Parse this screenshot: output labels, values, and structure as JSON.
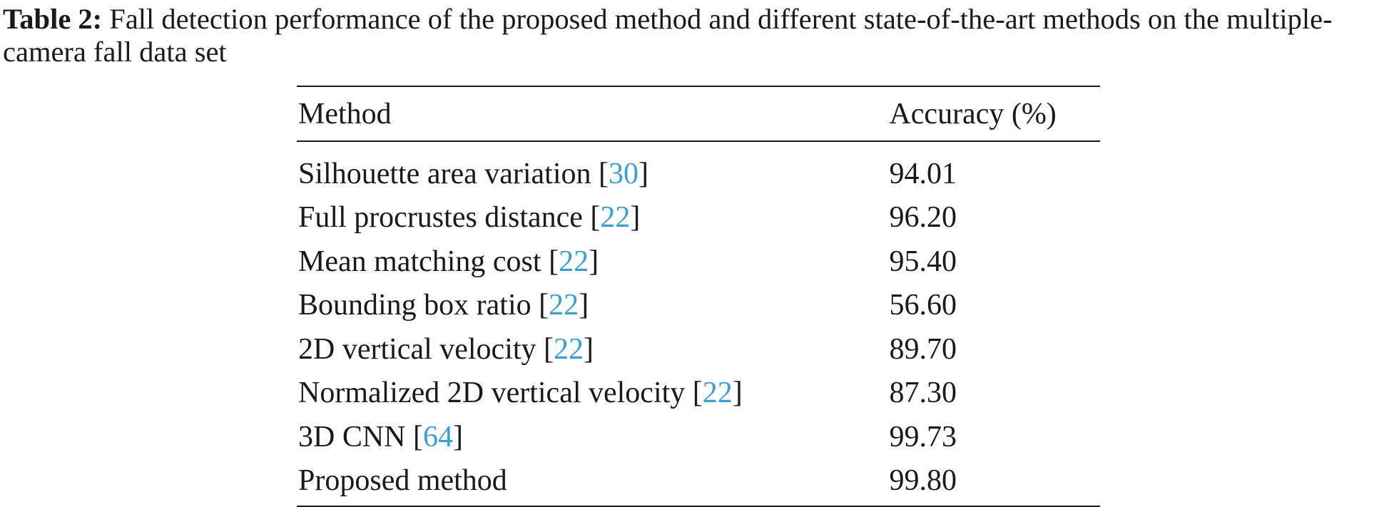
{
  "caption": {
    "label": "Table 2:",
    "text": "Fall detection performance of the proposed method and different state-of-the-art methods on the multiple-camera fall data set"
  },
  "table": {
    "headers": {
      "method": "Method",
      "accuracy": "Accuracy (%)"
    },
    "rows": [
      {
        "method": "Silhouette area variation",
        "ref": "30",
        "accuracy": "94.01"
      },
      {
        "method": "Full procrustes distance",
        "ref": "22",
        "accuracy": "96.20"
      },
      {
        "method": "Mean matching cost",
        "ref": "22",
        "accuracy": "95.40"
      },
      {
        "method": "Bounding box ratio",
        "ref": "22",
        "accuracy": "56.60"
      },
      {
        "method": "2D vertical velocity",
        "ref": "22",
        "accuracy": "89.70"
      },
      {
        "method": "Normalized 2D vertical velocity",
        "ref": "22",
        "accuracy": "87.30"
      },
      {
        "method": "3D CNN",
        "ref": "64",
        "accuracy": "99.73"
      },
      {
        "method": "Proposed method",
        "ref": "",
        "accuracy": "99.80"
      }
    ]
  },
  "colors": {
    "text": "#1a1a1a",
    "citation_link": "#3d9fd0"
  }
}
